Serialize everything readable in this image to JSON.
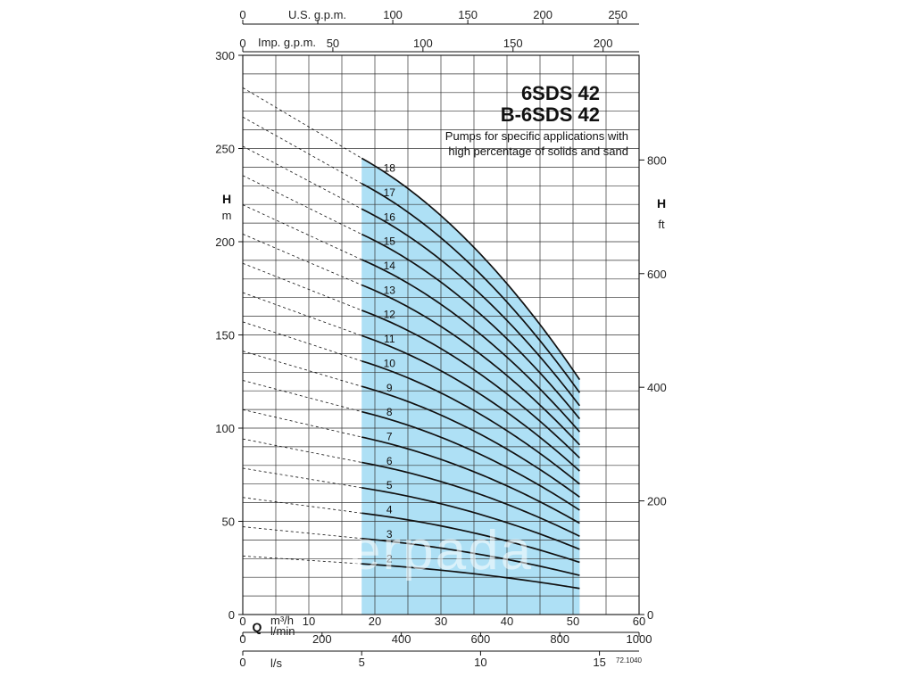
{
  "chart_data": {
    "type": "line",
    "title": "6SDS 42",
    "title2": "B-6SDS 42",
    "subtitle1": "Pumps for specific applications with",
    "subtitle2": "high percentage of solids and sand",
    "yleft_label": "H",
    "yleft_unit": "m",
    "yright_label": "H",
    "yright_unit": "ft",
    "xlabel": "Q",
    "x_unit_m3h": "m³/h",
    "x_unit_lmin": "l/min",
    "x_unit_ls": "l/s",
    "top_axis1_label": "U.S. g.p.m.",
    "top_axis2_label": "Imp. g.p.m.",
    "footnote": "72.1040",
    "watermark": "erpada",
    "xlim": [
      0,
      60
    ],
    "ylim": [
      0,
      300
    ],
    "ylim_ft": [
      0,
      984.25
    ],
    "operating_range": [
      18,
      51
    ],
    "x_ticks": [
      0,
      10,
      20,
      30,
      40,
      50,
      60
    ],
    "y_ticks": [
      0,
      50,
      100,
      150,
      200,
      250,
      300
    ],
    "yright_ticks": [
      0,
      200,
      400,
      600,
      800
    ],
    "lmin_ticks": [
      0,
      200,
      400,
      600,
      800,
      1000
    ],
    "ls_ticks": [
      0,
      5,
      10,
      15
    ],
    "usgpm_ticks": [
      0,
      50,
      100,
      150,
      200,
      250
    ],
    "impgpm_ticks": [
      0,
      50,
      100,
      150,
      200
    ],
    "impgpm_tick_labels": [
      "0",
      "50",
      "100",
      "150",
      "200"
    ],
    "usgpm_tick_labels": [
      "",
      "",
      "100",
      "150",
      "200",
      "250"
    ],
    "stage_head_shutoff": 15.7,
    "stage_head_at_18": 13.6,
    "stage_head_at_51": 7.0,
    "series": [
      {
        "name": "2",
        "stages": 2
      },
      {
        "name": "3",
        "stages": 3
      },
      {
        "name": "4",
        "stages": 4
      },
      {
        "name": "5",
        "stages": 5
      },
      {
        "name": "6",
        "stages": 6
      },
      {
        "name": "7",
        "stages": 7
      },
      {
        "name": "8",
        "stages": 8
      },
      {
        "name": "9",
        "stages": 9
      },
      {
        "name": "10",
        "stages": 10
      },
      {
        "name": "11",
        "stages": 11
      },
      {
        "name": "12",
        "stages": 12
      },
      {
        "name": "13",
        "stages": 13
      },
      {
        "name": "14",
        "stages": 14
      },
      {
        "name": "15",
        "stages": 15
      },
      {
        "name": "16",
        "stages": 16
      },
      {
        "name": "17",
        "stages": 17
      },
      {
        "name": "18",
        "stages": 18
      }
    ],
    "colors": {
      "operating_area": "#aee0f5",
      "curve": "#111111",
      "grid": "#333333"
    }
  }
}
